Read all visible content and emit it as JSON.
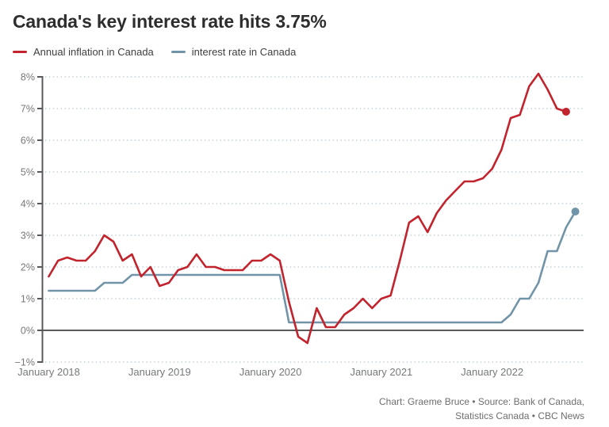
{
  "title": "Canada's key interest rate hits 3.75%",
  "legend": [
    {
      "label": "Annual inflation in Canada",
      "color": "#c2242d"
    },
    {
      "label": "interest rate in Canada",
      "color": "#7294a8"
    }
  ],
  "attribution": {
    "line1": "Chart: Graeme Bruce • Source: Bank of Canada,",
    "line2": "Statistics Canada • CBC News"
  },
  "colors": {
    "inflation_line": "#c2242d",
    "interest_line": "#7294a8",
    "axis": "#57595b",
    "zero_line": "#57595b",
    "gridline": "#b9c8d3",
    "tick_label": "#76797b",
    "title_text": "#2d2d2d",
    "attribution_text": "#6e6e6e"
  },
  "chart_data": {
    "type": "line",
    "title": "Canada's key interest rate hits 3.75%",
    "xlabel": "",
    "ylabel": "",
    "ylim": [
      -1,
      8
    ],
    "y_ticks": [
      8,
      7,
      6,
      5,
      4,
      3,
      2,
      1,
      0,
      -1
    ],
    "y_tick_suffix": "%",
    "x_start_month": "January 2018",
    "x_tick_labels": [
      "January 2018",
      "January 2019",
      "January 2020",
      "January 2021",
      "January 2022"
    ],
    "x_tick_month_indices": [
      0,
      12,
      24,
      36,
      48
    ],
    "grid": "dotted horizontal gridlines at each 1%, solid line at 0%",
    "legend_position": "top-left above plot",
    "series": [
      {
        "id": "interest-rate",
        "name": "interest rate in Canada",
        "color": "#7294a8",
        "start": "2018-01",
        "end": "2022-10",
        "end_value": 3.75,
        "end_dot": true,
        "values": [
          1.25,
          1.25,
          1.25,
          1.25,
          1.25,
          1.25,
          1.5,
          1.5,
          1.5,
          1.75,
          1.75,
          1.75,
          1.75,
          1.75,
          1.75,
          1.75,
          1.75,
          1.75,
          1.75,
          1.75,
          1.75,
          1.75,
          1.75,
          1.75,
          1.75,
          1.75,
          0.25,
          0.25,
          0.25,
          0.25,
          0.25,
          0.25,
          0.25,
          0.25,
          0.25,
          0.25,
          0.25,
          0.25,
          0.25,
          0.25,
          0.25,
          0.25,
          0.25,
          0.25,
          0.25,
          0.25,
          0.25,
          0.25,
          0.25,
          0.25,
          0.5,
          1.0,
          1.0,
          1.5,
          2.5,
          2.5,
          3.25,
          3.75
        ]
      },
      {
        "id": "inflation",
        "name": "Annual inflation in Canada",
        "color": "#c2242d",
        "start": "2018-01",
        "end": "2022-09",
        "end_value": 6.9,
        "end_dot": true,
        "values": [
          1.7,
          2.2,
          2.3,
          2.2,
          2.2,
          2.5,
          3.0,
          2.8,
          2.2,
          2.4,
          1.7,
          2.0,
          1.4,
          1.5,
          1.9,
          2.0,
          2.4,
          2.0,
          2.0,
          1.9,
          1.9,
          1.9,
          2.2,
          2.2,
          2.4,
          2.2,
          0.9,
          -0.2,
          -0.4,
          0.7,
          0.1,
          0.1,
          0.5,
          0.7,
          1.0,
          0.7,
          1.0,
          1.1,
          2.2,
          3.4,
          3.6,
          3.1,
          3.7,
          4.1,
          4.4,
          4.7,
          4.7,
          4.8,
          5.1,
          5.7,
          6.7,
          6.8,
          7.7,
          8.1,
          7.6,
          7.0,
          6.9
        ]
      }
    ]
  }
}
